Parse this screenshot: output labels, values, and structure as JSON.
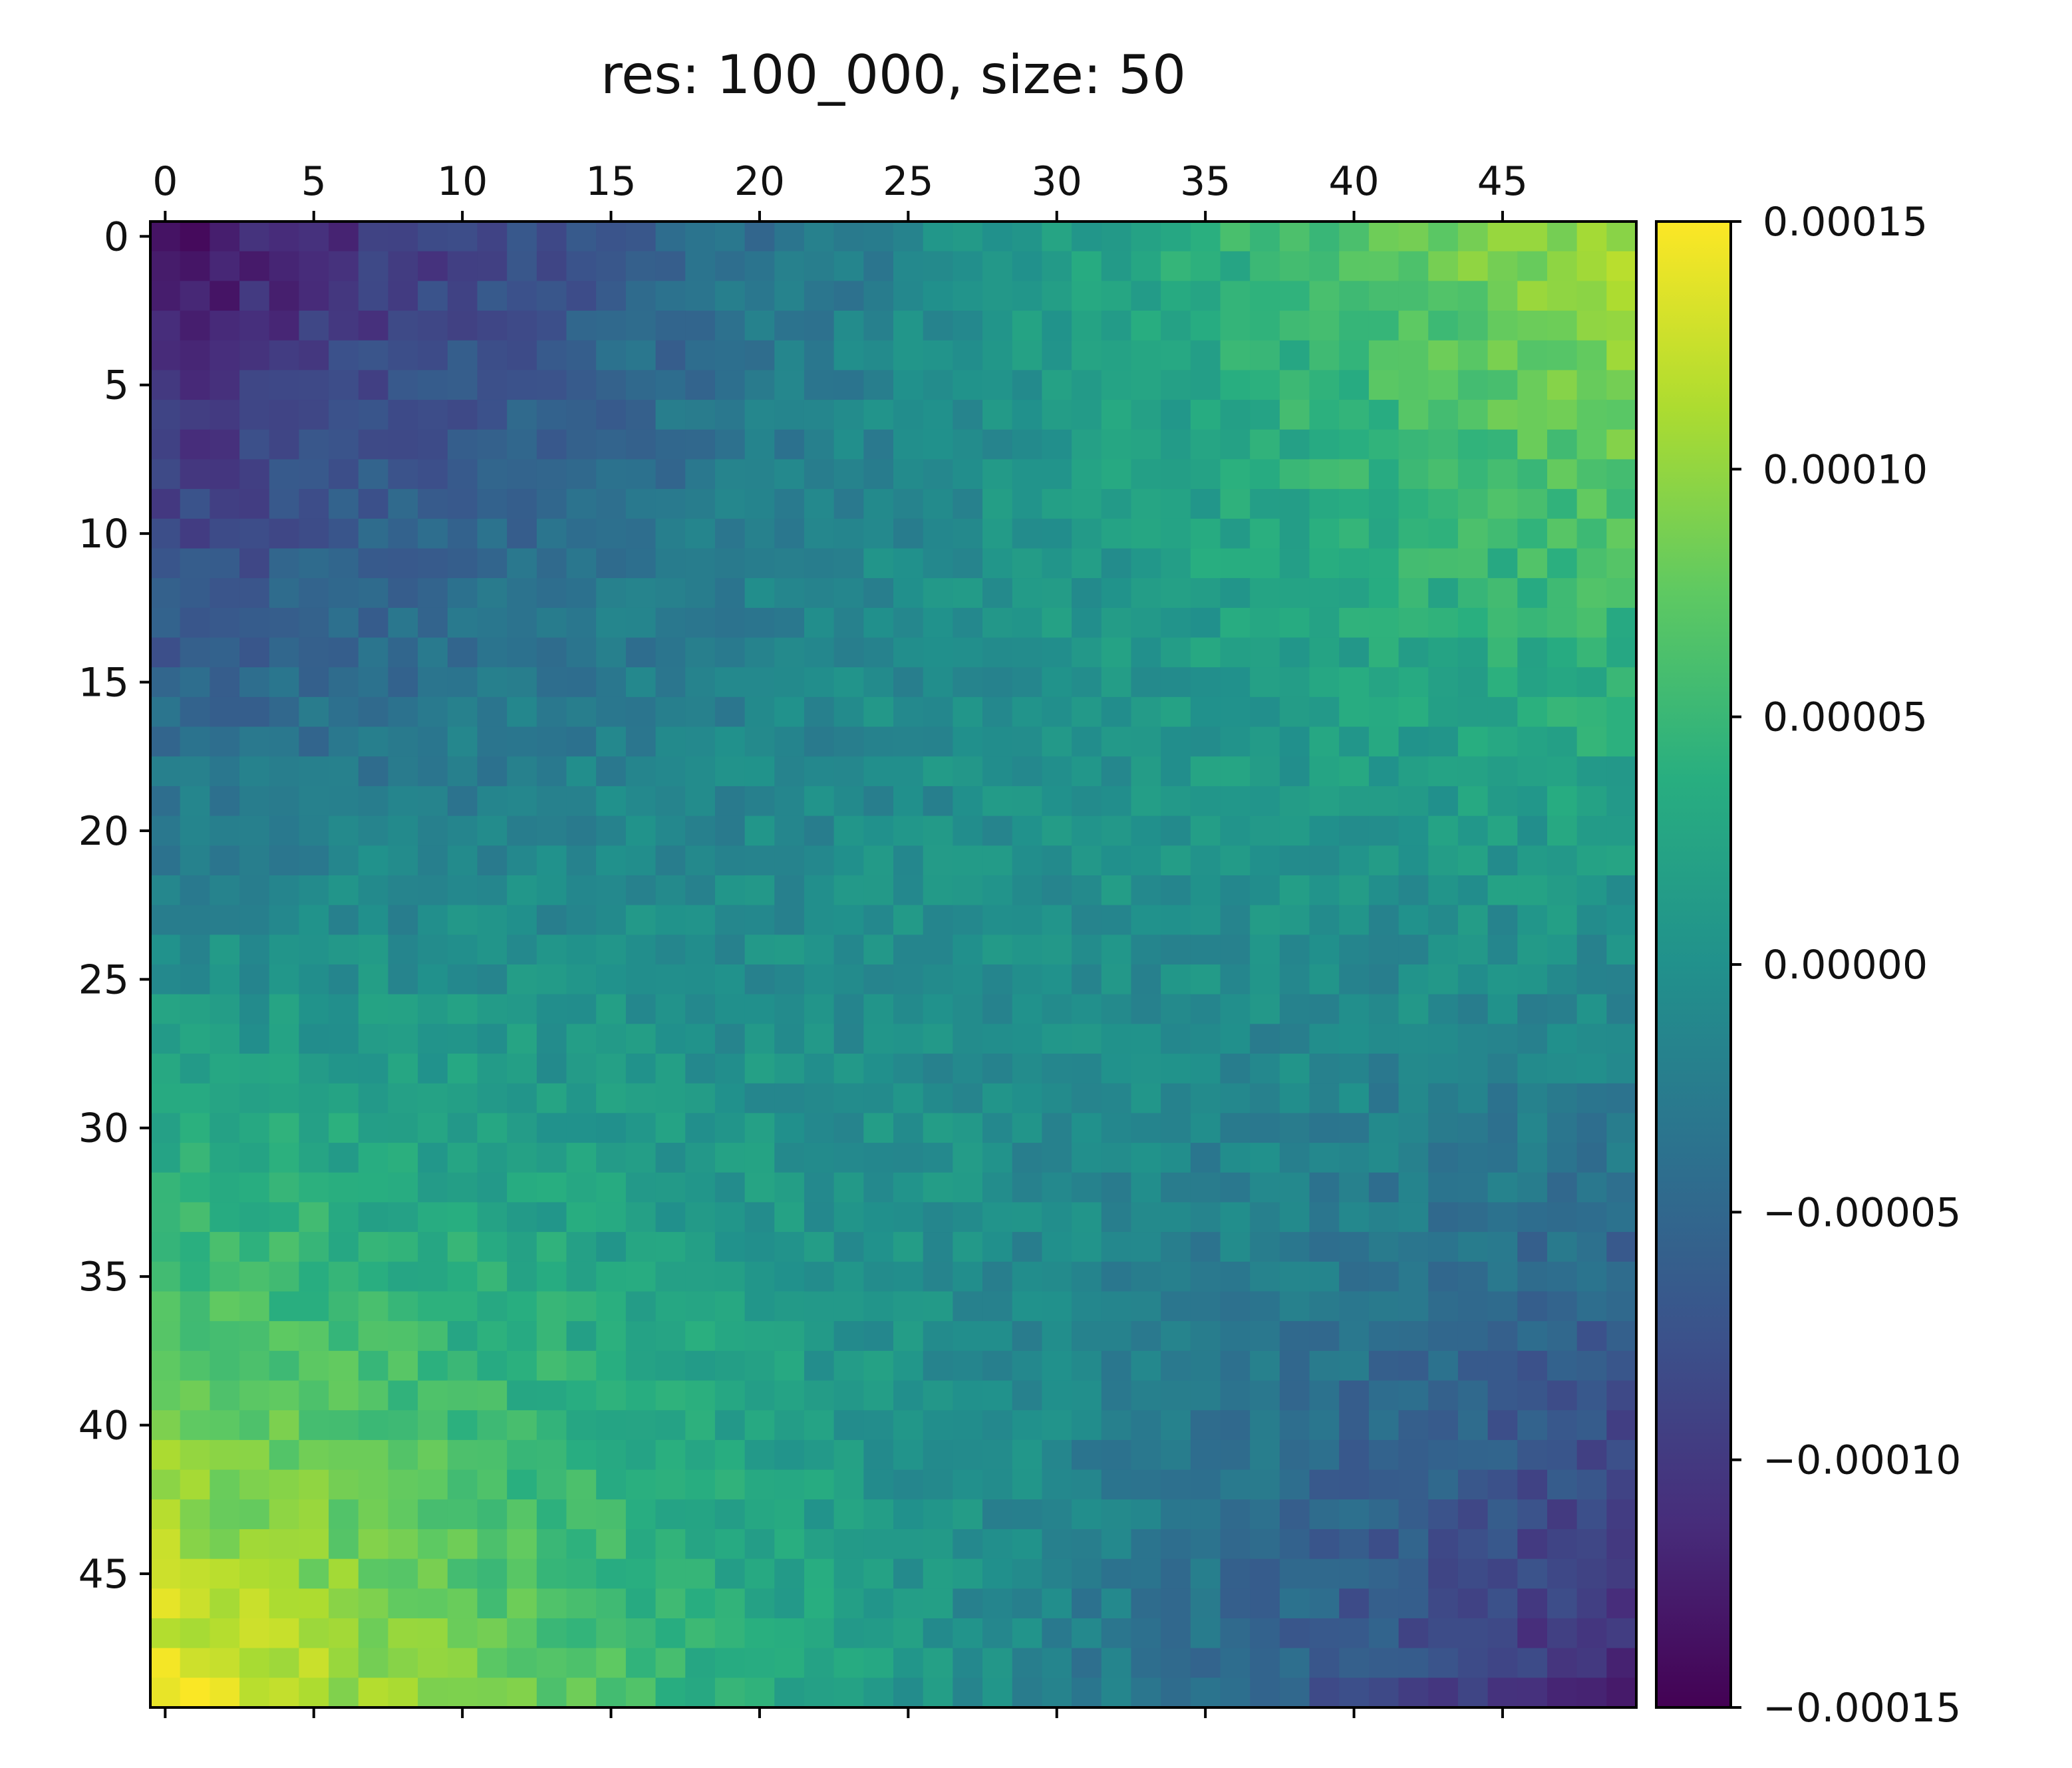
{
  "chart_data": {
    "type": "heatmap",
    "title": "res: 100_000, size: 50",
    "xlabel": "",
    "ylabel": "",
    "rows": 50,
    "cols": 50,
    "colormap": "viridis",
    "value_range": [
      -0.00015,
      0.00015
    ],
    "x_ticks": [
      "0",
      "5",
      "10",
      "15",
      "20",
      "25",
      "30",
      "35",
      "40",
      "45"
    ],
    "y_ticks": [
      "0",
      "5",
      "10",
      "15",
      "20",
      "25",
      "30",
      "35",
      "40",
      "45"
    ],
    "colorbar_ticks": [
      "0.00015",
      "0.00010",
      "0.00005",
      "0.00000",
      "−0.00005",
      "−0.00010",
      "−0.00015"
    ],
    "colorbar_values": [
      0.00015,
      0.0001,
      5e-05,
      0,
      -5e-05,
      -0.0001,
      -0.00015
    ],
    "pattern": {
      "top_left": -0.00014,
      "top_right": 0.00011,
      "bottom_left": 0.00014,
      "bottom_right": -0.00012,
      "noise_amplitude": 1.8e-05
    }
  }
}
